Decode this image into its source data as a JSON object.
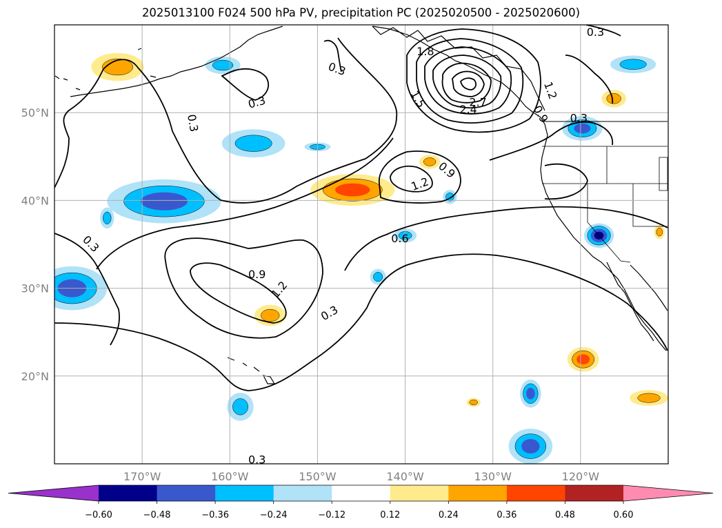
{
  "title": "2025013100 F024 500 hPa PV, precipitation PC (2025020500 - 2025020600)",
  "chart_data": {
    "type": "map-contour",
    "title": "2025013100 F024 500 hPa PV, precipitation PC (2025020500 - 2025020600)",
    "lon_range": [
      -180,
      -110
    ],
    "lat_range": [
      10,
      60
    ],
    "lon_ticks": [
      -170,
      -160,
      -150,
      -140,
      -130,
      -120
    ],
    "lat_ticks": [
      20,
      30,
      40,
      50
    ],
    "lon_tick_labels": [
      "170°W",
      "160°W",
      "150°W",
      "140°W",
      "130°W",
      "120°W"
    ],
    "lat_tick_labels": [
      "20°N",
      "30°N",
      "40°N",
      "50°N"
    ],
    "grid": true,
    "contour_field": "500 hPa PV",
    "contour_levels": [
      0.3,
      0.6,
      0.9,
      1.2,
      1.5,
      1.8,
      2.4,
      2.7
    ],
    "contour_labels": [
      {
        "text": "0.3",
        "lon": -164.3,
        "lat": 48.8,
        "rot": 80
      },
      {
        "text": "0.3",
        "lon": -156.9,
        "lat": 51.1,
        "rot": -15
      },
      {
        "text": "0.3",
        "lon": -147.8,
        "lat": 54.9,
        "rot": 20
      },
      {
        "text": "0.3",
        "lon": -118.3,
        "lat": 59.1,
        "rot": 0
      },
      {
        "text": "0.3",
        "lon": -120.2,
        "lat": 49.3,
        "rot": 0
      },
      {
        "text": "0.3",
        "lon": -175.9,
        "lat": 35.0,
        "rot": 45
      },
      {
        "text": "0.3",
        "lon": -148.6,
        "lat": 27.1,
        "rot": -30
      },
      {
        "text": "0.3",
        "lon": -156.9,
        "lat": 10.4,
        "rot": 0
      },
      {
        "text": "0.6",
        "lon": -140.6,
        "lat": 35.6,
        "rot": 0
      },
      {
        "text": "0.9",
        "lon": -156.9,
        "lat": 31.5,
        "rot": 0
      },
      {
        "text": "0.9",
        "lon": -135.3,
        "lat": 43.4,
        "rot": 40
      },
      {
        "text": "0.9",
        "lon": -124.6,
        "lat": 49.8,
        "rot": 60
      },
      {
        "text": "1.2",
        "lon": -154.3,
        "lat": 29.8,
        "rot": -50
      },
      {
        "text": "1.2",
        "lon": -138.3,
        "lat": 41.8,
        "rot": -20
      },
      {
        "text": "1.2",
        "lon": -123.5,
        "lat": 52.5,
        "rot": 70
      },
      {
        "text": "1.5",
        "lon": -138.6,
        "lat": 51.5,
        "rot": 60
      },
      {
        "text": "1.8",
        "lon": -137.7,
        "lat": 56.9,
        "rot": 0
      },
      {
        "text": "2.4",
        "lon": -132.8,
        "lat": 50.3,
        "rot": 0
      },
      {
        "text": "2.7",
        "lon": -131.7,
        "lat": 51.1,
        "rot": 0
      }
    ],
    "shaded_field": "precipitation PC",
    "colorbar": {
      "extend": "both",
      "boundaries": [
        -0.6,
        -0.48,
        -0.36,
        -0.24,
        -0.12,
        0.12,
        0.24,
        0.36,
        0.48,
        0.6
      ],
      "tick_labels": [
        "−0.60",
        "−0.48",
        "−0.36",
        "−0.24",
        "−0.12",
        "0.12",
        "0.24",
        "0.36",
        "0.48",
        "0.60"
      ],
      "colors": [
        "#9932cc",
        "#00008b",
        "#3a58cd",
        "#00bfff",
        "#b0e2f8",
        "#ffffff",
        "#ffeb8c",
        "#ffa500",
        "#ff4500",
        "#b22222",
        "#ff8cb0"
      ]
    },
    "anomaly_blobs": [
      {
        "lon": -172.8,
        "lat": 55.2,
        "rx": 3.0,
        "ry": 1.6,
        "levels": [
          "#ffeb8c",
          "#ffa500"
        ]
      },
      {
        "lon": -167.5,
        "lat": 39.9,
        "rx": 6.5,
        "ry": 2.5,
        "levels": [
          "#b0e2f8",
          "#00bfff",
          "#3a58cd"
        ]
      },
      {
        "lon": -157.3,
        "lat": 46.5,
        "rx": 3.6,
        "ry": 1.6,
        "levels": [
          "#b0e2f8",
          "#00bfff"
        ]
      },
      {
        "lon": -160.8,
        "lat": 55.4,
        "rx": 2.0,
        "ry": 1.0,
        "levels": [
          "#b0e2f8",
          "#00bfff"
        ]
      },
      {
        "lon": -146.0,
        "lat": 41.2,
        "rx": 4.8,
        "ry": 1.8,
        "levels": [
          "#ffeb8c",
          "#ffa500",
          "#ff4500"
        ]
      },
      {
        "lon": -178.0,
        "lat": 30.0,
        "rx": 4.0,
        "ry": 2.5,
        "levels": [
          "#b0e2f8",
          "#00bfff",
          "#3a58cd"
        ]
      },
      {
        "lon": -155.4,
        "lat": 26.9,
        "rx": 1.8,
        "ry": 1.2,
        "levels": [
          "#ffeb8c",
          "#ffa500"
        ]
      },
      {
        "lon": -119.8,
        "lat": 48.2,
        "rx": 2.3,
        "ry": 1.4,
        "levels": [
          "#b0e2f8",
          "#00bfff",
          "#3a58cd"
        ]
      },
      {
        "lon": -117.9,
        "lat": 36.0,
        "rx": 1.7,
        "ry": 1.4,
        "levels": [
          "#b0e2f8",
          "#00bfff",
          "#3a58cd",
          "#00008b"
        ]
      },
      {
        "lon": -119.7,
        "lat": 21.9,
        "rx": 1.8,
        "ry": 1.4,
        "levels": [
          "#ffeb8c",
          "#ffa500",
          "#ff4500"
        ]
      },
      {
        "lon": -114.0,
        "lat": 55.5,
        "rx": 2.6,
        "ry": 1.0,
        "levels": [
          "#b0e2f8",
          "#00bfff"
        ]
      },
      {
        "lon": -125.7,
        "lat": 12.0,
        "rx": 2.5,
        "ry": 2.0,
        "levels": [
          "#b0e2f8",
          "#00bfff",
          "#3a58cd"
        ]
      },
      {
        "lon": -125.7,
        "lat": 18.0,
        "rx": 1.2,
        "ry": 1.6,
        "levels": [
          "#b0e2f8",
          "#00bfff",
          "#3a58cd"
        ]
      },
      {
        "lon": -158.8,
        "lat": 16.5,
        "rx": 1.5,
        "ry": 1.6,
        "levels": [
          "#b0e2f8",
          "#00bfff"
        ]
      },
      {
        "lon": -112.2,
        "lat": 17.5,
        "rx": 2.2,
        "ry": 0.9,
        "levels": [
          "#ffeb8c",
          "#ffa500"
        ]
      },
      {
        "lon": -116.2,
        "lat": 51.6,
        "rx": 1.4,
        "ry": 1.0,
        "levels": [
          "#ffeb8c",
          "#ffa500"
        ]
      },
      {
        "lon": -140.0,
        "lat": 36.0,
        "rx": 1.3,
        "ry": 0.8,
        "levels": [
          "#b0e2f8",
          "#00bfff"
        ]
      },
      {
        "lon": -134.9,
        "lat": 40.4,
        "rx": 0.8,
        "ry": 0.8,
        "levels": [
          "#b0e2f8",
          "#00bfff"
        ]
      },
      {
        "lon": -137.2,
        "lat": 44.4,
        "rx": 1.2,
        "ry": 0.8,
        "levels": [
          "#ffeb8c",
          "#ffa500"
        ]
      },
      {
        "lon": -150.0,
        "lat": 46.1,
        "rx": 1.5,
        "ry": 0.5,
        "levels": [
          "#b0e2f8",
          "#00bfff"
        ]
      },
      {
        "lon": -174.0,
        "lat": 38.0,
        "rx": 0.8,
        "ry": 1.2,
        "levels": [
          "#b0e2f8",
          "#00bfff"
        ]
      },
      {
        "lon": -143.1,
        "lat": 31.3,
        "rx": 0.9,
        "ry": 0.9,
        "levels": [
          "#b0e2f8",
          "#00bfff"
        ]
      },
      {
        "lon": -132.2,
        "lat": 17.0,
        "rx": 0.8,
        "ry": 0.5,
        "levels": [
          "#ffeb8c",
          "#ffa500"
        ]
      },
      {
        "lon": -111.0,
        "lat": 36.4,
        "rx": 0.6,
        "ry": 0.8,
        "levels": [
          "#ffeb8c",
          "#ffa500"
        ]
      }
    ],
    "colors": {
      "contour": "#000000",
      "grid": "#b0b0b0",
      "coast": "#000000",
      "axis_label": "#808080"
    }
  }
}
